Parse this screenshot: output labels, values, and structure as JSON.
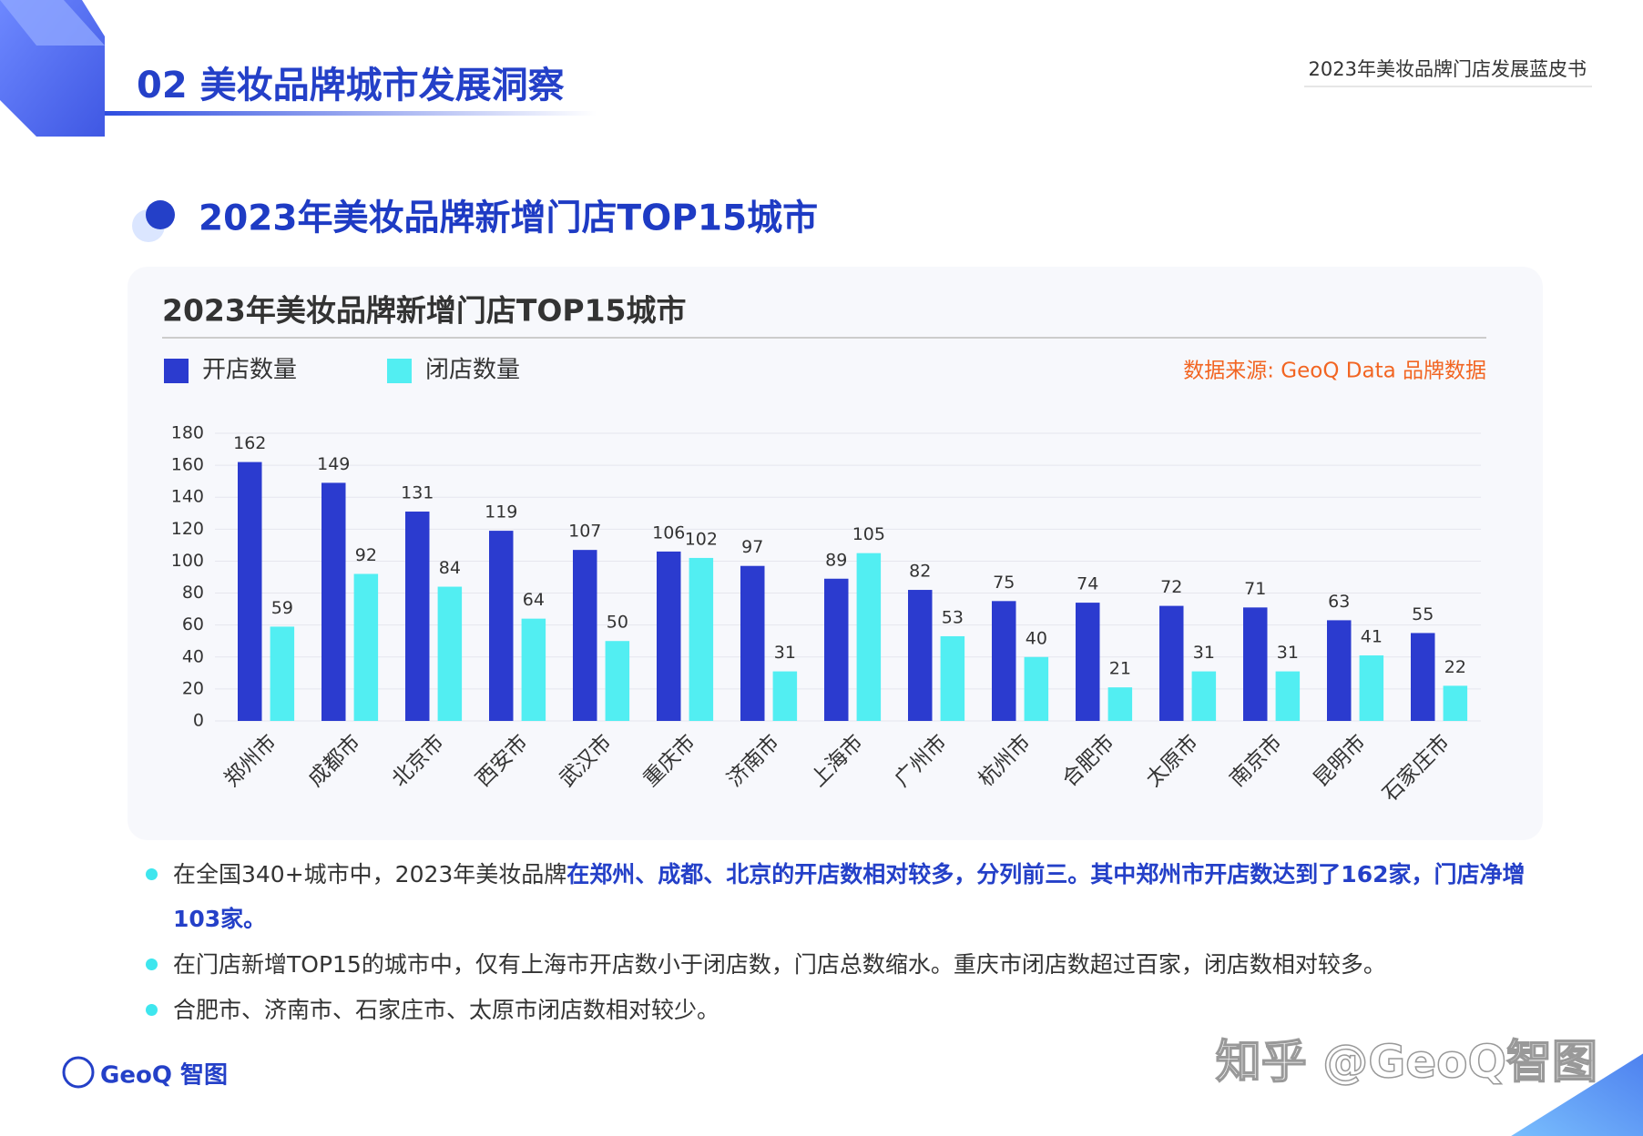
{
  "header": {
    "section": "02 美妆品牌城市发展洞察",
    "report": "2023年美妆品牌门店发展蓝皮书"
  },
  "heading": "2023年美妆品牌新增门店TOP15城市",
  "chart_data": {
    "type": "bar",
    "title": "2023年美妆品牌新增门店TOP15城市",
    "source": "数据来源: GeoQ Data 品牌数据",
    "categories": [
      "郑州市",
      "成都市",
      "北京市",
      "西安市",
      "武汉市",
      "重庆市",
      "济南市",
      "上海市",
      "广州市",
      "杭州市",
      "合肥市",
      "太原市",
      "南京市",
      "昆明市",
      "石家庄市"
    ],
    "series": [
      {
        "name": "开店数量",
        "color": "#2b3bcf",
        "values": [
          162,
          149,
          131,
          119,
          107,
          106,
          97,
          89,
          82,
          75,
          74,
          72,
          71,
          63,
          55
        ]
      },
      {
        "name": "闭店数量",
        "color": "#52eef2",
        "values": [
          59,
          92,
          84,
          64,
          50,
          102,
          31,
          105,
          53,
          40,
          21,
          31,
          31,
          41,
          22
        ]
      }
    ],
    "ylim": [
      0,
      180
    ],
    "yticks": [
      0,
      20,
      40,
      60,
      80,
      100,
      120,
      140,
      160,
      180
    ],
    "grid": true
  },
  "bullets": [
    {
      "segments": [
        {
          "text": "在全国340+城市中，2023年美妆品牌",
          "highlight": false
        },
        {
          "text": "在郑州、成都、北京的开店数相对较多，分列前三。其中郑州市开店数达到了162家，门店净增103家。",
          "highlight": true
        }
      ]
    },
    {
      "segments": [
        {
          "text": "在门店新增TOP15的城市中，仅有上海市开店数小于闭店数，门店总数缩水。重庆市闭店数超过百家，闭店数相对较多。",
          "highlight": false
        }
      ]
    },
    {
      "segments": [
        {
          "text": "合肥市、济南市、石家庄市、太原市闭店数相对较少。",
          "highlight": false
        }
      ]
    }
  ],
  "logo": "GeoQ 智图",
  "watermark": "知乎 @GeoQ智图"
}
